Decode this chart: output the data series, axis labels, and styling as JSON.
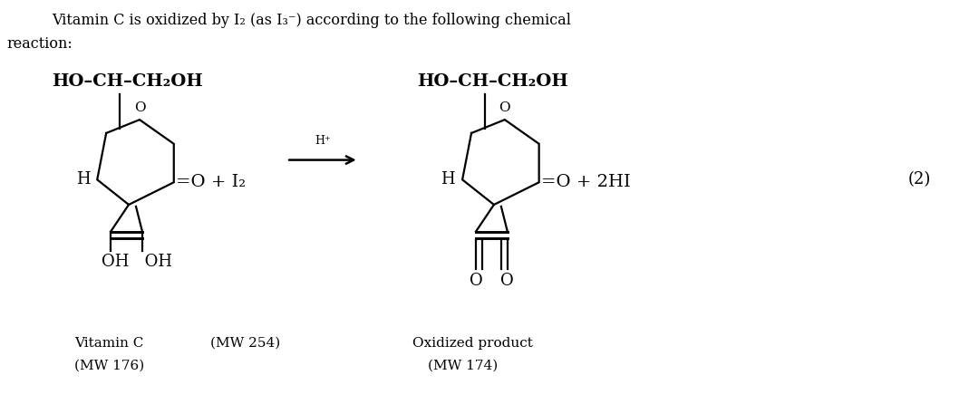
{
  "title_line1": "Vitamin C is oxidized by I₂ (as I₃⁻) according to the following chemical",
  "title_line2": "reaction:",
  "bg_color": "#ffffff",
  "text_color": "#000000",
  "figsize": [
    10.58,
    4.46
  ],
  "dpi": 100,
  "reactant_top": "HO–CH–CH₂OH",
  "product_top": "HO–CH–CH₂OH",
  "arrow_label": "H⁺",
  "reactant_H": "H",
  "reactant_bottom": "OH   OH",
  "product_H": "H",
  "product_bottom_left": "O",
  "product_bottom_right": "O",
  "label_vitaminC_line1": "Vitamin C",
  "label_vitaminC_line2": "(MW 176)",
  "label_MW254": "(MW 254)",
  "label_oxidized_line1": "Oxidized product",
  "label_oxidized_line2": "(MW 174)",
  "eq_number": "(2)"
}
